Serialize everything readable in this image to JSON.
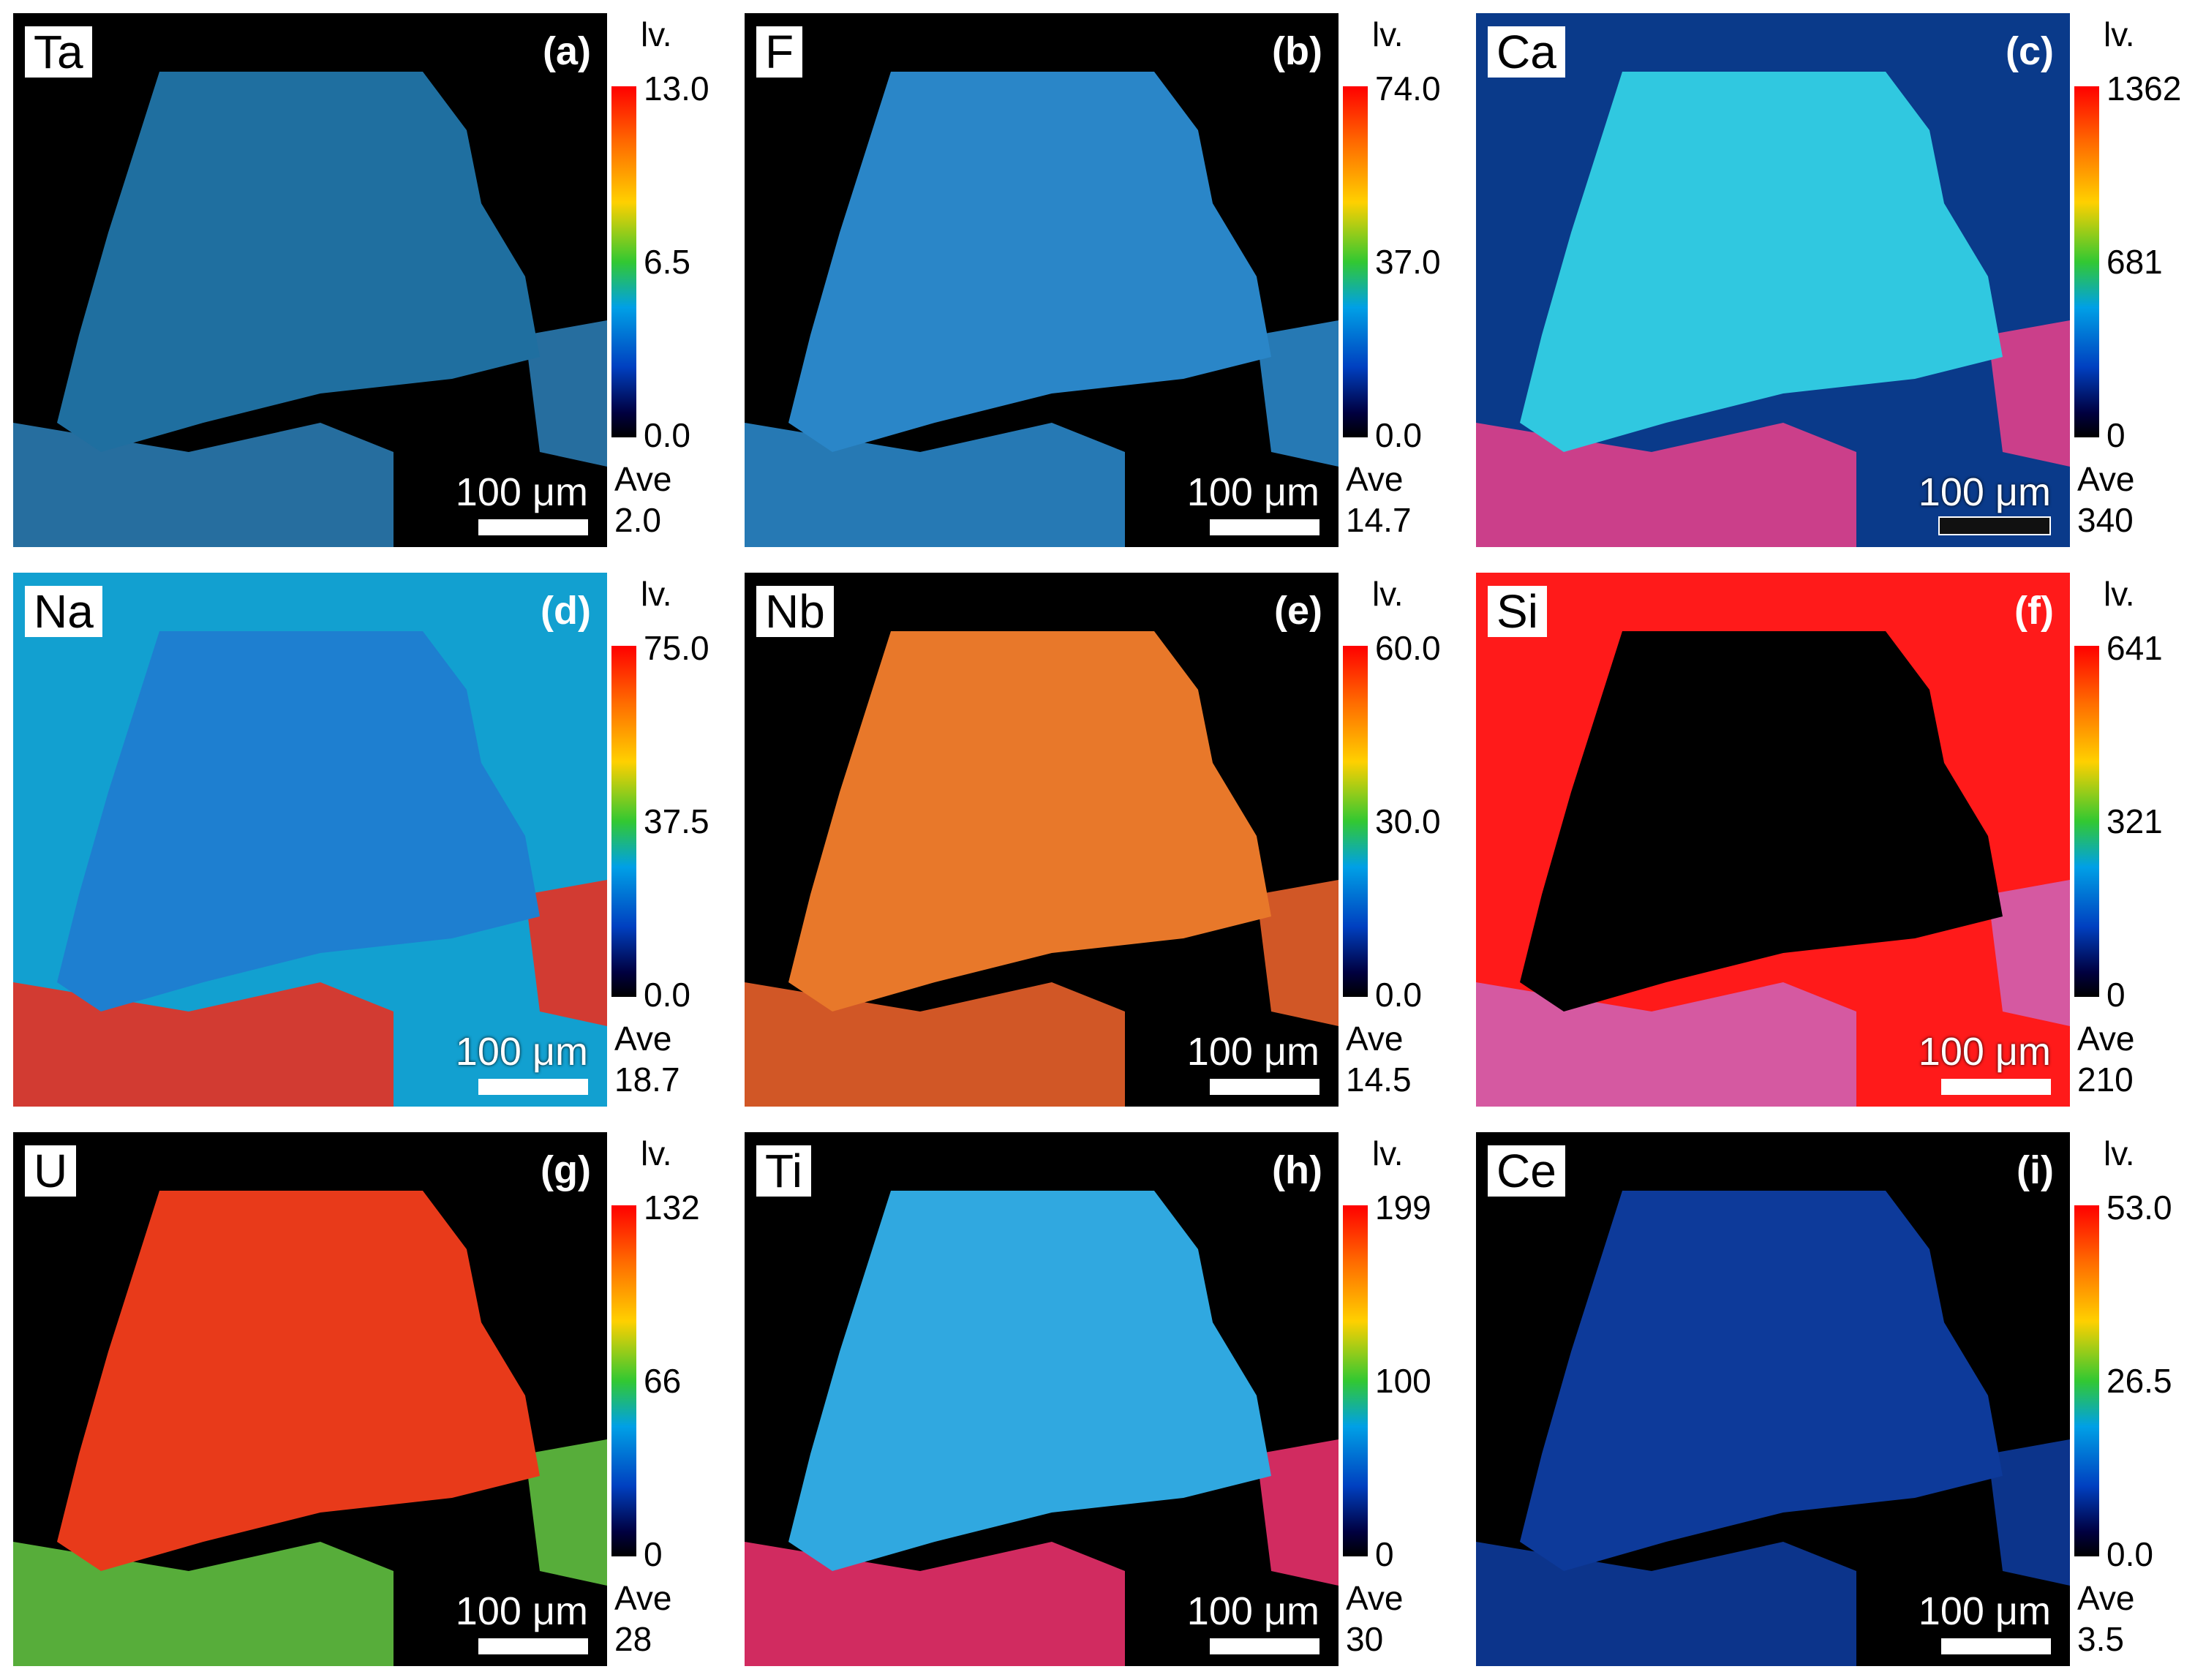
{
  "colorbar_unit": "lv.",
  "ave_label": "Ave",
  "scale_label": "100 μm",
  "panels": [
    {
      "element": "Ta",
      "letter": "(a)",
      "max": "13.0",
      "mid": "6.5",
      "min": "0.0",
      "ave": "2.0"
    },
    {
      "element": "F",
      "letter": "(b)",
      "max": "74.0",
      "mid": "37.0",
      "min": "0.0",
      "ave": "14.7"
    },
    {
      "element": "Ca",
      "letter": "(c)",
      "max": "1362",
      "mid": "681",
      "min": "0",
      "ave": "340"
    },
    {
      "element": "Na",
      "letter": "(d)",
      "max": "75.0",
      "mid": "37.5",
      "min": "0.0",
      "ave": "18.7"
    },
    {
      "element": "Nb",
      "letter": "(e)",
      "max": "60.0",
      "mid": "30.0",
      "min": "0.0",
      "ave": "14.5"
    },
    {
      "element": "Si",
      "letter": "(f)",
      "max": "641",
      "mid": "321",
      "min": "0",
      "ave": "210"
    },
    {
      "element": "U",
      "letter": "(g)",
      "max": "132",
      "mid": "66",
      "min": "0",
      "ave": "28"
    },
    {
      "element": "Ti",
      "letter": "(h)",
      "max": "199",
      "mid": "100",
      "min": "0",
      "ave": "30"
    },
    {
      "element": "Ce",
      "letter": "(i)",
      "max": "53.0",
      "mid": "26.5",
      "min": "0.0",
      "ave": "3.5"
    }
  ]
}
